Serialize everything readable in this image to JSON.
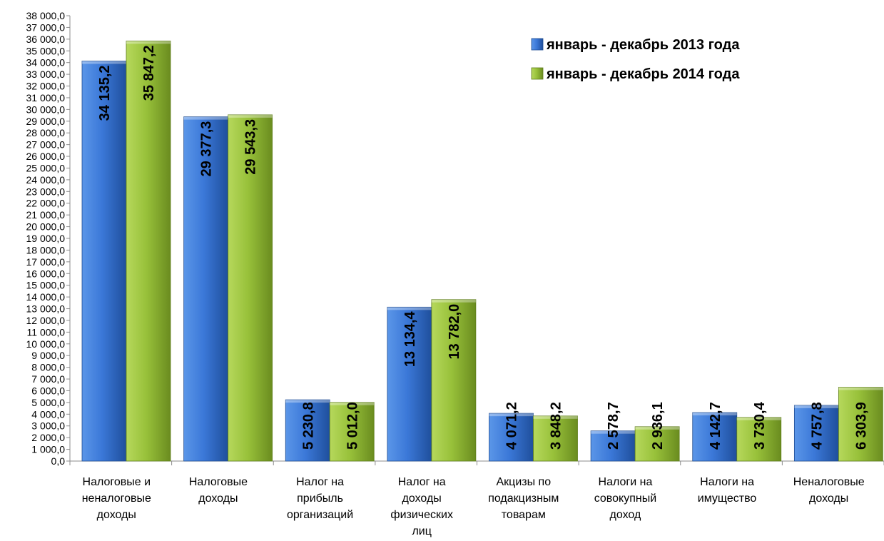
{
  "chart_data": {
    "type": "bar",
    "categories": [
      [
        "Налоговые и",
        "неналоговые",
        "доходы"
      ],
      [
        "Налоговые",
        "доходы"
      ],
      [
        "Налог на",
        "прибыль",
        "организаций"
      ],
      [
        "Налог на",
        "доходы",
        "физических",
        "лиц"
      ],
      [
        "Акцизы по",
        "подакцизным",
        "товарам"
      ],
      [
        "Налоги на",
        "совокупный",
        "доход"
      ],
      [
        "Налоги на",
        "имущество"
      ],
      [
        "Неналоговые",
        "доходы"
      ]
    ],
    "series": [
      {
        "name": "январь - декабрь 2013 года",
        "color": "#3b78d8",
        "values": [
          34135.2,
          29377.3,
          5230.8,
          13134.4,
          4071.2,
          2578.7,
          4142.7,
          4757.8
        ],
        "labels": [
          "34 135,2",
          "29 377,3",
          "5 230,8",
          "13 134,4",
          "4 071,2",
          "2 578,7",
          "4 142,7",
          "4 757,8"
        ]
      },
      {
        "name": "январь - декабрь 2014 года",
        "color": "#98c13a",
        "values": [
          35847.2,
          29543.3,
          5012.0,
          13782.0,
          3848.2,
          2936.1,
          3730.4,
          6303.9
        ],
        "labels": [
          "35 847,2",
          "29 543,3",
          "5 012,0",
          "13 782,0",
          "3 848,2",
          "2 936,1",
          "3 730,4",
          "6 303,9"
        ]
      }
    ],
    "ylim": [
      0,
      38000
    ],
    "ytick_step": 1000,
    "ytick_labels": [
      "0,0",
      "1 000,0",
      "2 000,0",
      "3 000,0",
      "4 000,0",
      "5 000,0",
      "6 000,0",
      "7 000,0",
      "8 000,0",
      "9 000,0",
      "10 000,0",
      "11 000,0",
      "12 000,0",
      "13 000,0",
      "14 000,0",
      "15 000,0",
      "16 000,0",
      "17 000,0",
      "18 000,0",
      "19 000,0",
      "20 000,0",
      "21 000,0",
      "22 000,0",
      "23 000,0",
      "24 000,0",
      "25 000,0",
      "26 000,0",
      "27 000,0",
      "28 000,0",
      "29 000,0",
      "30 000,0",
      "31 000,0",
      "32 000,0",
      "33 000,0",
      "34 000,0",
      "35 000,0",
      "36 000,0",
      "37 000,0",
      "38 000,0"
    ],
    "title": "",
    "xlabel": "",
    "ylabel": "",
    "grid": false,
    "legend_position": "top-right"
  }
}
